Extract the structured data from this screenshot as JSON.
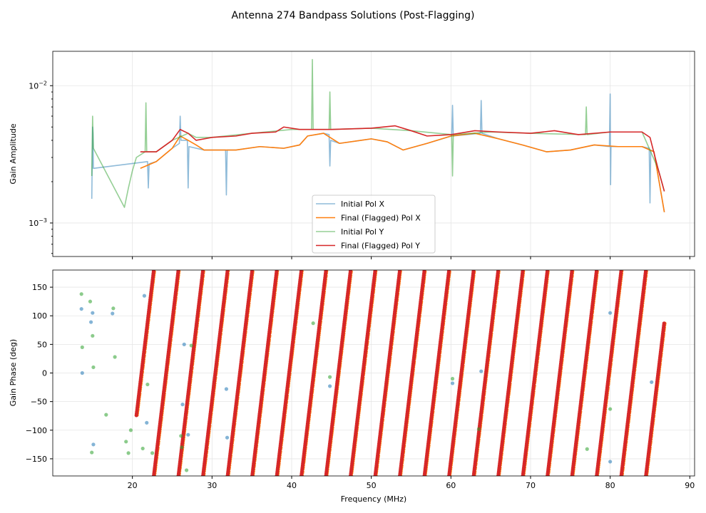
{
  "chart_data": [
    {
      "type": "line",
      "title": "Antenna 274 Bandpass Solutions (Post-Flagging)",
      "xlabel": "",
      "ylabel": "Gain Amplitude",
      "yscale": "log",
      "xlim": [
        10,
        90.6
      ],
      "ylim": [
        0.00057,
        0.0178
      ],
      "grid": true,
      "xticks": [
        20,
        30,
        40,
        50,
        60,
        70,
        80,
        90
      ],
      "yticks": [
        {
          "value": 0.01,
          "base": "10",
          "exp": "−2"
        },
        {
          "value": 0.001,
          "base": "10",
          "exp": "−3"
        }
      ],
      "legend": {
        "placement": "lower-center",
        "entries": [
          "Initial Pol X",
          "Final (Flagged) Pol X",
          "Initial Pol Y",
          "Final (Flagged) Pol Y"
        ]
      },
      "series": [
        {
          "name": "Initial Pol X",
          "color": "#1f77b4",
          "alpha": 0.5,
          "x": [
            14.9,
            15.0,
            15.05,
            15.1,
            21.9,
            22.0,
            22.1,
            23,
            25,
            25.9,
            26.0,
            26.1,
            26.9,
            27.0,
            27.1,
            29,
            31.7,
            31.8,
            31.9,
            33,
            36,
            39,
            41,
            42,
            44,
            44.7,
            44.8,
            44.9,
            46,
            50,
            52,
            54,
            57,
            60.1,
            60.2,
            60.3,
            63.7,
            63.8,
            63.9,
            66,
            69,
            72,
            75,
            78,
            79.9,
            80.0,
            80.05,
            80.1,
            81,
            84,
            84.9,
            85.0,
            85.1,
            85.5,
            86.8
          ],
          "y": [
            0.0015,
            0.005,
            0.0045,
            0.0025,
            0.0028,
            0.0018,
            0.0027,
            0.0028,
            0.0035,
            0.0038,
            0.006,
            0.004,
            0.004,
            0.0018,
            0.0036,
            0.0034,
            0.0034,
            0.0016,
            0.0034,
            0.0034,
            0.0036,
            0.0035,
            0.0037,
            0.0043,
            0.0045,
            0.0044,
            0.0026,
            0.004,
            0.0038,
            0.0041,
            0.0039,
            0.0034,
            0.0038,
            0.0043,
            0.0072,
            0.0043,
            0.0045,
            0.0078,
            0.0045,
            0.0041,
            0.0037,
            0.0033,
            0.0034,
            0.0037,
            0.0036,
            0.0087,
            0.0019,
            0.0036,
            0.0036,
            0.0036,
            0.0035,
            0.0014,
            0.0034,
            0.0033,
            0.0012
          ]
        },
        {
          "name": "Final (Flagged) Pol X",
          "color": "#ff7f0e",
          "alpha": 1,
          "x": [
            21,
            23,
            25,
            26,
            27,
            28,
            29,
            33,
            36,
            39,
            41,
            42,
            44,
            46,
            50,
            52,
            54,
            57,
            60,
            63,
            66,
            69,
            72,
            75,
            78,
            81,
            84,
            85.5,
            86.8
          ],
          "y": [
            0.0025,
            0.0028,
            0.0035,
            0.0043,
            0.004,
            0.0037,
            0.0034,
            0.0034,
            0.0036,
            0.0035,
            0.0037,
            0.0043,
            0.0045,
            0.0038,
            0.0041,
            0.0039,
            0.0034,
            0.0038,
            0.0043,
            0.0045,
            0.0041,
            0.0037,
            0.0033,
            0.0034,
            0.0037,
            0.0036,
            0.0036,
            0.0033,
            0.0012
          ]
        },
        {
          "name": "Initial Pol Y",
          "color": "#2ca02c",
          "alpha": 0.5,
          "x": [
            14.9,
            15.0,
            15.1,
            19.0,
            19.5,
            20.0,
            20.5,
            21.6,
            21.7,
            21.8,
            23,
            25,
            27,
            28,
            30,
            35,
            40,
            42.5,
            42.6,
            42.7,
            44.7,
            44.8,
            44.9,
            50,
            55,
            60.1,
            60.2,
            60.3,
            65,
            70,
            76.9,
            77.0,
            77.1,
            80,
            84,
            86,
            86.8
          ],
          "y": [
            0.0022,
            0.006,
            0.0035,
            0.0013,
            0.0018,
            0.0024,
            0.003,
            0.0033,
            0.0075,
            0.0033,
            0.0033,
            0.004,
            0.0045,
            0.0042,
            0.0042,
            0.0045,
            0.0048,
            0.0048,
            0.0155,
            0.0048,
            0.0048,
            0.009,
            0.0048,
            0.0049,
            0.0047,
            0.0044,
            0.0022,
            0.0044,
            0.0046,
            0.0045,
            0.0044,
            0.007,
            0.0044,
            0.0046,
            0.0046,
            0.0025,
            0.0017
          ]
        },
        {
          "name": "Final (Flagged) Pol Y",
          "color": "#d62728",
          "alpha": 1,
          "x": [
            21,
            23,
            25,
            26,
            27,
            28,
            30,
            33,
            35,
            38,
            39,
            41,
            45,
            50,
            53,
            55,
            57,
            60,
            63,
            66,
            70,
            73,
            76,
            80,
            84,
            85,
            86,
            86.8
          ],
          "y": [
            0.0033,
            0.0033,
            0.004,
            0.0048,
            0.0045,
            0.004,
            0.0042,
            0.0043,
            0.0045,
            0.0046,
            0.005,
            0.0048,
            0.0048,
            0.0049,
            0.0051,
            0.0047,
            0.0043,
            0.0044,
            0.0047,
            0.0046,
            0.0045,
            0.0047,
            0.0044,
            0.0046,
            0.0046,
            0.0042,
            0.0025,
            0.0017
          ]
        }
      ]
    },
    {
      "type": "scatter",
      "xlabel": "Frequency (MHz)",
      "ylabel": "Gain Phase (deg)",
      "xlim": [
        10,
        90.6
      ],
      "ylim": [
        -180,
        180
      ],
      "grid": true,
      "xticks": [
        20,
        30,
        40,
        50,
        60,
        70,
        80,
        90
      ],
      "yticks": [
        150,
        100,
        50,
        0,
        -50,
        -100,
        -150
      ],
      "phase_wrap": {
        "period_mhz": 3.09,
        "wrap_start_mhz": 22.68,
        "freq_range_mhz": [
          20.5,
          86.8
        ]
      },
      "series": [
        {
          "name": "Final (Flagged) Pol X",
          "color": "#ff7f0e"
        },
        {
          "name": "Final (Flagged) Pol Y",
          "color": "#d62728"
        },
        {
          "name": "Initial Pol X",
          "color": "#1f77b4",
          "x": [
            13.6,
            13.7,
            14.8,
            15.0,
            15.1,
            17.5,
            21.5,
            21.8,
            26.3,
            26.5,
            27.0,
            31.8,
            31.9,
            44.8,
            60.2,
            63.8,
            80.0,
            80.0,
            85.2
          ],
          "y": [
            112,
            0,
            89,
            105,
            -125,
            104,
            135,
            -87,
            -55,
            50,
            -108,
            -28,
            -113,
            -23,
            -18,
            3,
            105,
            -155,
            -16
          ]
        },
        {
          "name": "Initial Pol Y",
          "color": "#2ca02c",
          "x": [
            13.6,
            13.7,
            14.7,
            14.9,
            15.0,
            15.1,
            16.7,
            17.6,
            17.8,
            19.2,
            19.5,
            19.8,
            21.3,
            21.9,
            22.5,
            26.1,
            26.2,
            26.8,
            27.4,
            42.7,
            44.8,
            60.2,
            63.5,
            77.1,
            80.0
          ],
          "y": [
            138,
            45,
            125,
            -139,
            65,
            10,
            -73,
            113,
            28,
            -120,
            -140,
            -100,
            -132,
            -20,
            -140,
            -110,
            -130,
            -170,
            48,
            87,
            -7,
            -10,
            -98,
            -133,
            -63
          ]
        }
      ]
    }
  ]
}
